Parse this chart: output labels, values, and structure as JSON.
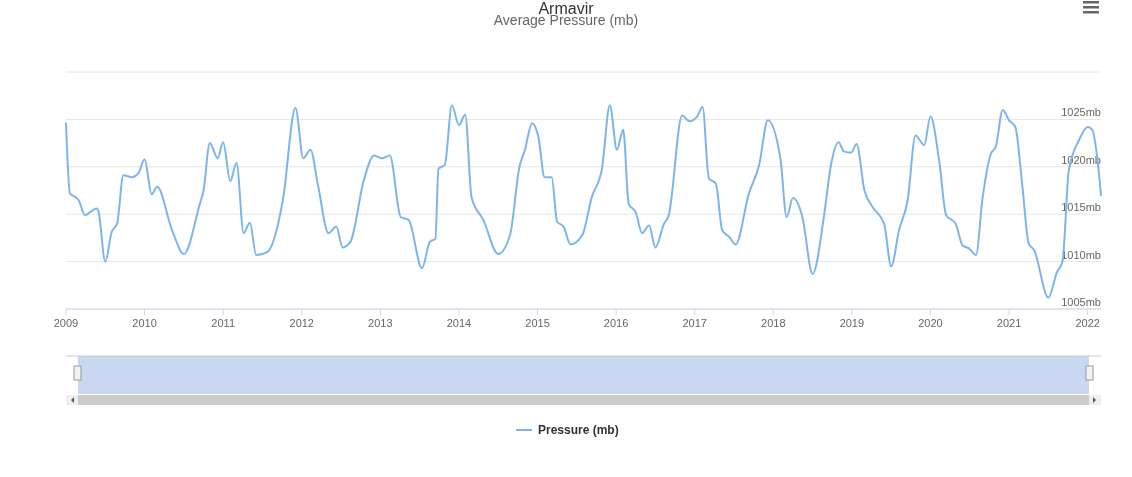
{
  "chart_data": {
    "type": "line",
    "title": "Armavir",
    "subtitle": "Average Pressure (mb)",
    "x": [
      2009.0,
      2009.05,
      2009.12,
      2009.16,
      2009.24,
      2009.39,
      2009.41,
      2009.5,
      2009.58,
      2009.65,
      2009.73,
      2009.84,
      2009.92,
      2010.0,
      2010.09,
      2010.16,
      2010.35,
      2010.5,
      2010.7,
      2010.75,
      2010.83,
      2010.93,
      2011.0,
      2011.09,
      2011.17,
      2011.26,
      2011.34,
      2011.42,
      2011.56,
      2011.76,
      2011.92,
      2012.02,
      2012.11,
      2012.21,
      2012.34,
      2012.44,
      2012.52,
      2012.62,
      2012.79,
      2012.92,
      2013.02,
      2013.12,
      2013.26,
      2013.36,
      2013.53,
      2013.63,
      2013.7,
      2013.74,
      2013.82,
      2013.91,
      2014.0,
      2014.08,
      2014.16,
      2014.31,
      2014.5,
      2014.65,
      2014.77,
      2014.84,
      2014.93,
      2015.01,
      2015.09,
      2015.18,
      2015.25,
      2015.33,
      2015.42,
      2015.57,
      2015.69,
      2015.82,
      2015.92,
      2016.01,
      2016.09,
      2016.16,
      2016.25,
      2016.33,
      2016.42,
      2016.5,
      2016.61,
      2016.67,
      2016.84,
      2016.93,
      2017.03,
      2017.1,
      2017.18,
      2017.27,
      2017.35,
      2017.44,
      2017.52,
      2017.69,
      2017.82,
      2017.93,
      2018.09,
      2018.17,
      2018.25,
      2018.37,
      2018.5,
      2018.65,
      2018.73,
      2018.83,
      2018.9,
      2018.99,
      2019.06,
      2019.16,
      2019.26,
      2019.41,
      2019.5,
      2019.6,
      2019.71,
      2019.81,
      2019.92,
      2020.0,
      2020.11,
      2020.2,
      2020.32,
      2020.41,
      2020.49,
      2020.58,
      2020.66,
      2020.77,
      2020.83,
      2020.92,
      2021.0,
      2021.08,
      2021.17,
      2021.25,
      2021.32,
      2021.5,
      2021.61,
      2021.68,
      2021.76,
      2021.89,
      2022.0,
      2022.06,
      2022.12,
      2022.17
    ],
    "series": [
      {
        "name": "Pressure (mb)",
        "color": "#7cb5ec",
        "values": [
          1024.6,
          1017.2,
          1016.8,
          1016.5,
          1014.9,
          1015.6,
          1015.4,
          1010.0,
          1013.1,
          1014.0,
          1019.1,
          1018.9,
          1019.3,
          1020.8,
          1017.1,
          1017.9,
          1013.3,
          1010.8,
          1016.0,
          1017.5,
          1022.5,
          1020.9,
          1022.6,
          1018.5,
          1020.4,
          1013.0,
          1014.1,
          1010.7,
          1011.0,
          1016.5,
          1026.2,
          1020.9,
          1021.8,
          1017.9,
          1013.0,
          1013.7,
          1011.5,
          1012.1,
          1018.6,
          1021.2,
          1020.9,
          1021.2,
          1014.7,
          1014.4,
          1009.3,
          1012.1,
          1012.4,
          1019.8,
          1020.2,
          1026.5,
          1024.4,
          1025.5,
          1016.8,
          1014.4,
          1010.8,
          1012.8,
          1020.0,
          1021.8,
          1024.6,
          1023.2,
          1018.9,
          1018.9,
          1014.2,
          1013.7,
          1011.8,
          1012.8,
          1016.8,
          1019.8,
          1026.5,
          1021.8,
          1023.9,
          1016.1,
          1015.2,
          1013.0,
          1013.8,
          1011.5,
          1014.0,
          1014.9,
          1025.4,
          1024.8,
          1025.3,
          1026.3,
          1018.8,
          1018.2,
          1013.3,
          1012.6,
          1011.8,
          1017.2,
          1020.2,
          1024.9,
          1020.9,
          1014.7,
          1016.7,
          1014.7,
          1008.7,
          1015.1,
          1020.0,
          1022.6,
          1021.6,
          1021.5,
          1022.4,
          1017.5,
          1015.8,
          1014.0,
          1009.5,
          1013.3,
          1016.5,
          1023.3,
          1022.3,
          1025.3,
          1020.7,
          1014.9,
          1014.0,
          1011.7,
          1011.4,
          1010.7,
          1016.5,
          1021.4,
          1022.1,
          1026.0,
          1024.9,
          1024.2,
          1017.9,
          1011.9,
          1011.2,
          1006.2,
          1008.9,
          1010.0,
          1019.6,
          1022.8,
          1024.2,
          1023.9,
          1021.1,
          1017.0
        ]
      }
    ],
    "xlim": [
      2009,
      2022.17
    ],
    "xticks": [
      2009,
      2010,
      2011,
      2012,
      2013,
      2014,
      2015,
      2016,
      2017,
      2018,
      2019,
      2020,
      2021,
      2022
    ],
    "ylim": [
      1005,
      1030
    ],
    "yticks": [
      {
        "value": 1005,
        "label": "1005mb"
      },
      {
        "value": 1010,
        "label": "1010mb"
      },
      {
        "value": 1015,
        "label": "1015mb"
      },
      {
        "value": 1020,
        "label": "1020mb"
      },
      {
        "value": 1025,
        "label": "1025mb"
      },
      {
        "value": 1030,
        "label": null
      }
    ],
    "grid": "y",
    "legend": "bottom",
    "marker": "none",
    "line_style": "solid"
  }
}
